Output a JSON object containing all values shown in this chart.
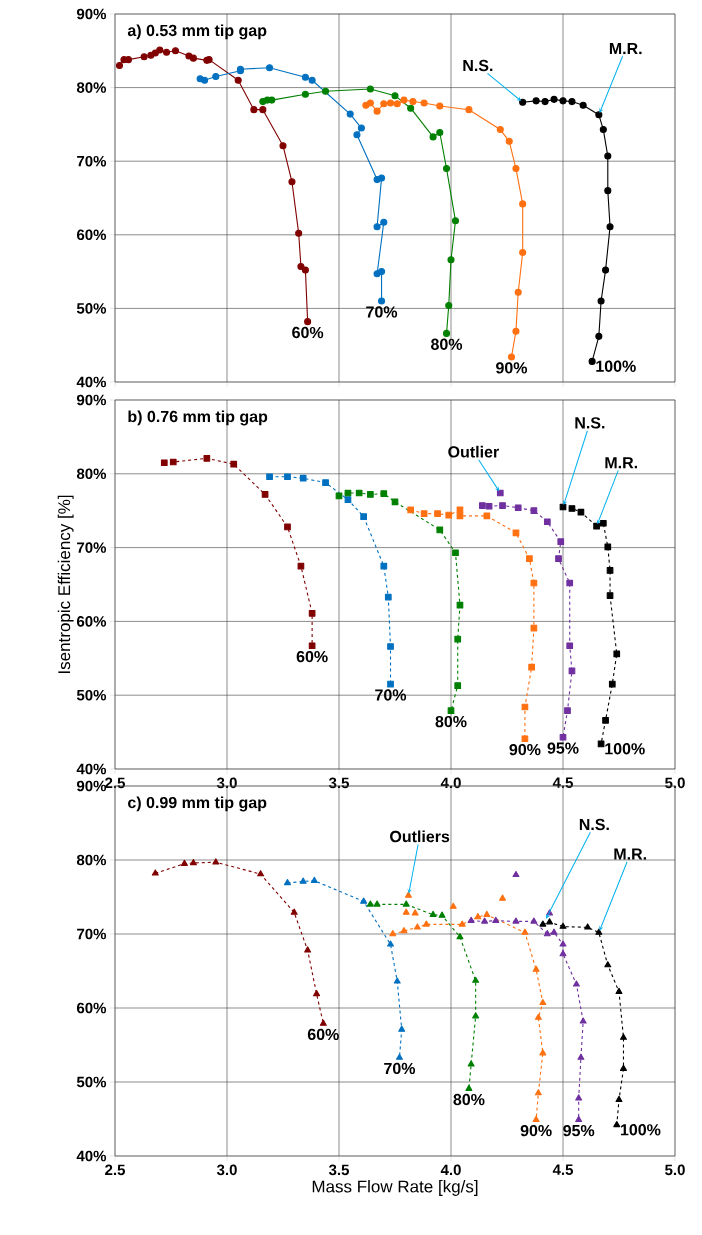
{
  "chart_data": [
    {
      "type": "line",
      "title": "a) 0.53 mm tip gap",
      "xlim": [
        2.5,
        5.0
      ],
      "ylim": [
        40,
        90
      ],
      "xticks": [
        2.5,
        3,
        3.5,
        4,
        4.5,
        5
      ],
      "yticks": [
        {
          "value": 40,
          "label": "40%"
        },
        {
          "value": 50,
          "label": "50%"
        },
        {
          "value": 60,
          "label": "60%"
        },
        {
          "value": 70,
          "label": "70%"
        },
        {
          "value": 80,
          "label": "80%"
        },
        {
          "value": 90,
          "label": "90%"
        }
      ],
      "tick_labels": "y",
      "grid": true,
      "marker": "circle",
      "line_style": "solid",
      "series": [
        {
          "name": "60%",
          "color": "#800000",
          "x": [
            2.52,
            2.54,
            2.56,
            2.63,
            2.66,
            2.68,
            2.7,
            2.73,
            2.77,
            2.83,
            2.85,
            2.91,
            2.92,
            3.05,
            3.12,
            3.16,
            3.25,
            3.29,
            3.32,
            3.33,
            3.35,
            3.36
          ],
          "values": [
            83.0,
            83.8,
            83.8,
            84.2,
            84.4,
            84.7,
            85.1,
            84.8,
            85.0,
            84.3,
            84.0,
            83.7,
            83.8,
            81.0,
            77.0,
            77.0,
            72.1,
            67.2,
            60.2,
            55.7,
            55.2,
            48.2
          ]
        },
        {
          "name": "70%",
          "color": "#0070c0",
          "x": [
            2.88,
            2.9,
            2.95,
            3.06,
            3.06,
            3.19,
            3.35,
            3.38,
            3.55,
            3.6,
            3.58,
            3.67,
            3.69,
            3.67,
            3.7,
            3.67,
            3.69,
            3.69
          ],
          "values": [
            81.2,
            81.0,
            81.5,
            82.3,
            82.5,
            82.7,
            81.4,
            81.0,
            76.4,
            74.5,
            73.6,
            67.5,
            67.7,
            61.1,
            61.7,
            54.7,
            55.0,
            51.0
          ]
        },
        {
          "name": "80%",
          "color": "#008000",
          "x": [
            3.16,
            3.18,
            3.2,
            3.35,
            3.44,
            3.64,
            3.75,
            3.82,
            3.92,
            3.95,
            3.98,
            4.02,
            4.0,
            3.99,
            3.98
          ],
          "values": [
            78.1,
            78.3,
            78.3,
            79.1,
            79.5,
            79.8,
            78.9,
            77.2,
            73.3,
            73.9,
            69.0,
            61.9,
            56.6,
            50.4,
            46.6
          ]
        },
        {
          "name": "90%",
          "color": "#ff7010",
          "x": [
            3.62,
            3.64,
            3.67,
            3.7,
            3.73,
            3.76,
            3.79,
            3.83,
            3.88,
            3.95,
            4.08,
            4.22,
            4.26,
            4.29,
            4.32,
            4.32,
            4.3,
            4.29,
            4.27
          ],
          "values": [
            77.6,
            77.9,
            76.8,
            77.8,
            77.9,
            77.8,
            78.3,
            78.1,
            77.9,
            77.5,
            77.0,
            74.3,
            72.7,
            69.0,
            64.2,
            57.6,
            52.2,
            46.9,
            43.4
          ]
        },
        {
          "name": "100%",
          "color": "#000000",
          "x": [
            4.32,
            4.38,
            4.42,
            4.46,
            4.5,
            4.54,
            4.59,
            4.66,
            4.68,
            4.7,
            4.7,
            4.71,
            4.69,
            4.67,
            4.66,
            4.63
          ],
          "values": [
            78.0,
            78.2,
            78.1,
            78.4,
            78.2,
            78.1,
            77.6,
            76.3,
            74.3,
            70.7,
            66.0,
            61.1,
            55.2,
            51.0,
            46.2,
            42.8
          ]
        }
      ],
      "annotations": [
        {
          "text": "N.S.",
          "x": 4.32,
          "y": 78.0
        },
        {
          "text": "M.R.",
          "x": 4.66,
          "y": 76.3
        }
      ]
    },
    {
      "type": "line",
      "title": "b) 0.76 mm tip gap",
      "ylabel": "Isentropic Efficiency [%]",
      "xlim": [
        2.5,
        5.0
      ],
      "ylim": [
        40,
        90
      ],
      "xticks": [
        {
          "value": 2.5,
          "label": "2.5"
        },
        {
          "value": 3.0,
          "label": "3.0"
        },
        {
          "value": 3.5,
          "label": "3.5"
        },
        {
          "value": 4.0,
          "label": "4.0"
        },
        {
          "value": 4.5,
          "label": "4.5"
        },
        {
          "value": 5.0,
          "label": "5.0"
        }
      ],
      "yticks": [
        {
          "value": 40,
          "label": "40%"
        },
        {
          "value": 50,
          "label": "50%"
        },
        {
          "value": 60,
          "label": "60%"
        },
        {
          "value": 70,
          "label": "70%"
        },
        {
          "value": 80,
          "label": "80%"
        },
        {
          "value": 90,
          "label": "90%"
        }
      ],
      "grid": true,
      "marker": "square",
      "line_style": "dashed",
      "series": [
        {
          "name": "60%",
          "color": "#800000",
          "x": [
            2.72,
            2.76,
            2.91,
            3.03,
            3.17,
            3.27,
            3.33,
            3.38,
            3.38
          ],
          "values": [
            81.5,
            81.6,
            82.1,
            81.3,
            77.2,
            72.8,
            67.5,
            61.1,
            56.7
          ]
        },
        {
          "name": "70%",
          "color": "#0070c0",
          "x": [
            3.19,
            3.27,
            3.34,
            3.44,
            3.54,
            3.61,
            3.7,
            3.72,
            3.73,
            3.73
          ],
          "values": [
            79.6,
            79.6,
            79.4,
            78.8,
            76.5,
            74.2,
            67.5,
            63.3,
            56.6,
            51.5
          ]
        },
        {
          "name": "80%",
          "color": "#008000",
          "x": [
            3.5,
            3.54,
            3.59,
            3.64,
            3.7,
            3.75,
            3.95,
            4.02,
            4.04,
            4.03,
            4.03,
            4.0
          ],
          "values": [
            77.0,
            77.4,
            77.4,
            77.2,
            77.3,
            76.2,
            72.4,
            69.3,
            62.2,
            57.6,
            51.3,
            47.9
          ]
        },
        {
          "name": "90%",
          "color": "#ff7010",
          "x": [
            3.82,
            3.88,
            3.94,
            3.99,
            4.04,
            4.04,
            4.16,
            4.29,
            4.35,
            4.37,
            4.37,
            4.36,
            4.33,
            4.33
          ],
          "values": [
            75.1,
            74.6,
            74.6,
            74.4,
            75.1,
            74.3,
            74.3,
            72.0,
            68.5,
            65.2,
            59.1,
            53.8,
            48.4,
            44.1
          ]
        },
        {
          "type": "scatter",
          "color": "#7030a0",
          "x": [
            4.22
          ],
          "values": [
            77.4
          ]
        },
        {
          "name": "95%",
          "color": "#7030a0",
          "x": [
            4.14,
            4.17,
            4.23,
            4.3,
            4.37,
            4.43,
            4.49,
            4.48,
            4.53,
            4.53,
            4.54,
            4.52,
            4.5
          ],
          "values": [
            75.7,
            75.6,
            75.7,
            75.4,
            75.0,
            73.5,
            70.8,
            68.5,
            65.2,
            56.7,
            53.3,
            47.9,
            44.3
          ]
        },
        {
          "name": "100%",
          "color": "#000000",
          "x": [
            4.5,
            4.54,
            4.58,
            4.65,
            4.68,
            4.7,
            4.71,
            4.71,
            4.74,
            4.72,
            4.69,
            4.67
          ],
          "values": [
            75.5,
            75.3,
            74.8,
            72.9,
            73.3,
            70.1,
            66.9,
            63.5,
            55.6,
            51.5,
            46.6,
            43.4
          ]
        }
      ],
      "annotations": [
        {
          "text": "Outlier",
          "x": 4.22,
          "y": 77.4
        },
        {
          "text": "N.S.",
          "x": 4.5,
          "y": 75.5
        },
        {
          "text": "M.R.",
          "x": 4.65,
          "y": 72.9
        }
      ]
    },
    {
      "type": "line",
      "title": "c) 0.99 mm tip gap",
      "xlabel": "Mass Flow Rate [kg/s]",
      "xlim": [
        2.5,
        5.0
      ],
      "ylim": [
        40,
        90
      ],
      "xticks": [
        {
          "value": 2.5,
          "label": "2.5"
        },
        {
          "value": 3.0,
          "label": "3.0"
        },
        {
          "value": 3.5,
          "label": "3.5"
        },
        {
          "value": 4.0,
          "label": "4.0"
        },
        {
          "value": 4.5,
          "label": "4.5"
        },
        {
          "value": 5.0,
          "label": "5.0"
        }
      ],
      "yticks": [
        {
          "value": 40,
          "label": "40%"
        },
        {
          "value": 50,
          "label": "50%"
        },
        {
          "value": 60,
          "label": "60%"
        },
        {
          "value": 70,
          "label": "70%"
        },
        {
          "value": 80,
          "label": "80%"
        },
        {
          "value": 90,
          "label": "90%"
        }
      ],
      "grid": true,
      "marker": "triangle",
      "line_style": "dashed",
      "series": [
        {
          "name": "60%",
          "color": "#800000",
          "x": [
            2.68,
            2.81,
            2.85,
            2.95,
            3.15,
            3.3,
            3.36,
            3.4,
            3.43
          ],
          "values": [
            78.2,
            79.5,
            79.6,
            79.7,
            78.1,
            72.9,
            67.8,
            61.9,
            57.9
          ]
        },
        {
          "name": "70%",
          "color": "#0070c0",
          "x": [
            3.27,
            3.34,
            3.39,
            3.61,
            3.73,
            3.76,
            3.78,
            3.77
          ],
          "values": [
            76.9,
            77.1,
            77.2,
            74.4,
            68.6,
            63.6,
            57.1,
            53.3
          ]
        },
        {
          "name": "80%",
          "color": "#008000",
          "x": [
            3.64,
            3.67,
            3.8,
            3.92,
            3.96,
            4.04,
            4.11,
            4.11,
            4.09,
            4.08
          ],
          "values": [
            74.0,
            74.0,
            74.0,
            72.6,
            72.5,
            69.6,
            63.7,
            58.9,
            52.4,
            49.1
          ]
        },
        {
          "name": "90%",
          "color": "#ff7010",
          "x": [
            3.74,
            3.79,
            3.85,
            3.89,
            4.05,
            4.12,
            4.16,
            4.33,
            4.38,
            4.41,
            4.39,
            4.41,
            4.39,
            4.38
          ],
          "values": [
            70.0,
            70.4,
            70.9,
            71.3,
            71.3,
            72.3,
            72.6,
            70.2,
            65.2,
            60.7,
            58.7,
            53.9,
            48.5,
            44.9
          ]
        },
        {
          "type": "scatter",
          "color": "#ff7010",
          "x": [
            3.81,
            3.8,
            3.84,
            4.01,
            4.23
          ],
          "values": [
            75.2,
            72.9,
            72.8,
            73.7,
            74.8
          ]
        },
        {
          "name": "95%",
          "color": "#7030a0",
          "x": [
            4.09,
            4.15,
            4.2,
            4.29,
            4.37,
            4.43,
            4.46,
            4.5,
            4.5,
            4.56,
            4.59,
            4.58,
            4.57,
            4.57
          ],
          "values": [
            71.8,
            71.7,
            71.8,
            71.7,
            71.7,
            70.0,
            70.2,
            68.6,
            67.3,
            63.2,
            58.2,
            53.3,
            47.8,
            44.9
          ]
        },
        {
          "type": "scatter",
          "color": "#7030a0",
          "x": [
            4.29,
            4.44
          ],
          "values": [
            78.0,
            72.8
          ]
        },
        {
          "name": "100%",
          "color": "#000000",
          "x": [
            4.41,
            4.44,
            4.5,
            4.61,
            4.66,
            4.7,
            4.75,
            4.77,
            4.77,
            4.75,
            4.74
          ],
          "values": [
            71.3,
            71.6,
            71.0,
            70.9,
            70.2,
            65.8,
            62.2,
            56.0,
            51.8,
            47.6,
            44.2
          ]
        }
      ],
      "annotations": [
        {
          "text": "Outliers",
          "x": 3.81,
          "y": 75.2
        },
        {
          "text": "N.S.",
          "x": 4.42,
          "y": 71.8
        },
        {
          "text": "M.R.",
          "x": 4.66,
          "y": 70.2
        }
      ]
    }
  ]
}
